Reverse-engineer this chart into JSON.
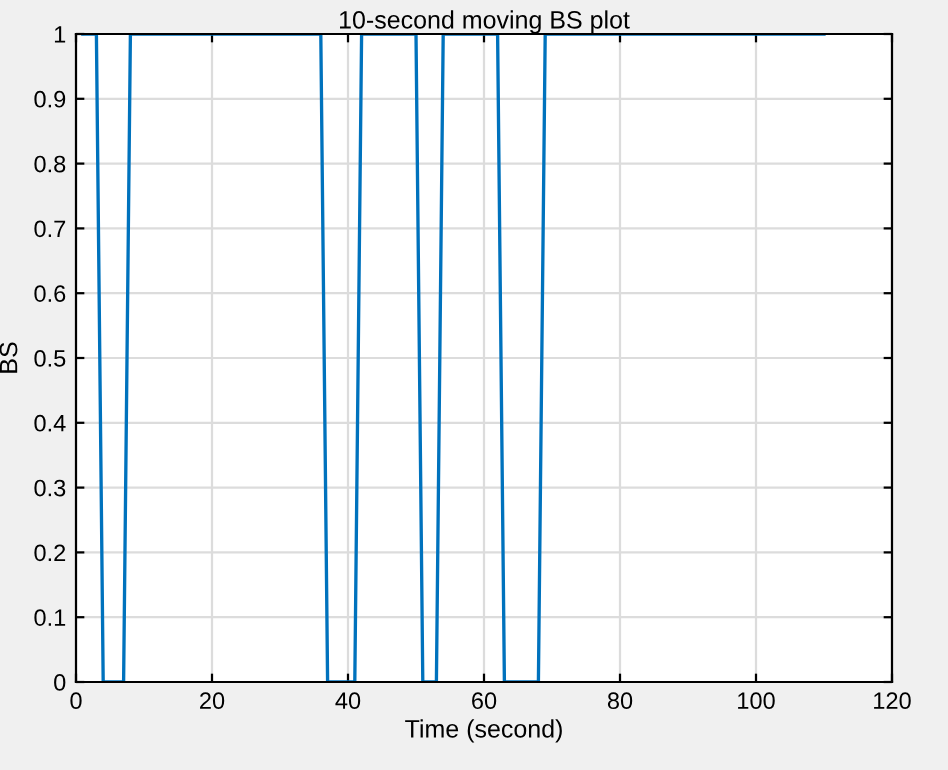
{
  "chart_data": {
    "type": "line",
    "title": "10-second moving BS plot",
    "xlabel": "Time (second)",
    "ylabel": "BS",
    "x": [
      1,
      3,
      4,
      7,
      8,
      36,
      37,
      41,
      42,
      50,
      51,
      53,
      54,
      62,
      63,
      68,
      69,
      110
    ],
    "series": [
      {
        "color": "#0072bd",
        "values": [
          1,
          1,
          0,
          0,
          1,
          1,
          0,
          0,
          1,
          1,
          0,
          0,
          1,
          1,
          0,
          0,
          1,
          1
        ]
      }
    ],
    "xlim": [
      0,
      120
    ],
    "xticks": [
      0,
      20,
      40,
      60,
      80,
      100,
      120
    ],
    "ylim": [
      0,
      1
    ],
    "yticks": [
      0,
      0.1,
      0.2,
      0.3,
      0.4,
      0.5,
      0.6,
      0.7,
      0.8,
      0.9,
      1
    ],
    "grid": true,
    "line_style": "solid"
  }
}
